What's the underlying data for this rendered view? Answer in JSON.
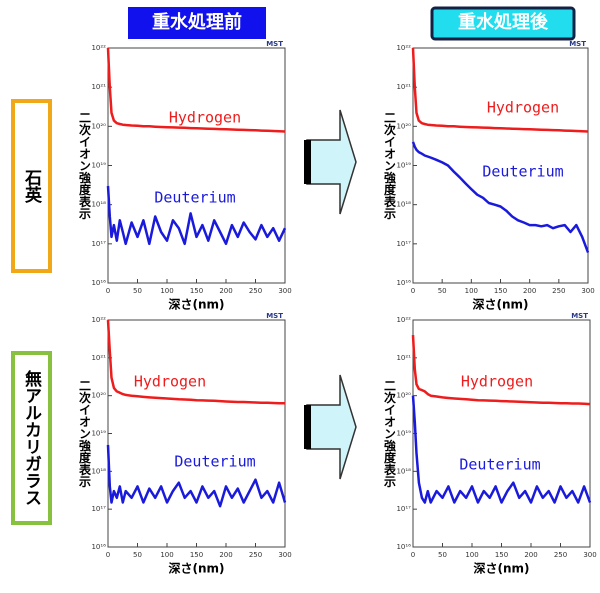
{
  "headers": [
    "重水処理前",
    "重水処理後"
  ],
  "rows": [
    "石英",
    "無アルカリガラス"
  ],
  "chart_data": [
    {
      "type": "line",
      "logo": "MST",
      "xlabel": "深さ(nm)",
      "ylabel": "二次イオン強度表示",
      "log_scale": true,
      "xlim": [
        0,
        300
      ],
      "xticks": [
        0,
        50,
        100,
        150,
        200,
        250,
        300
      ],
      "ylim": [
        1e+16,
        1e+22
      ],
      "yticks": [
        {
          "value": 1e+16,
          "label": "10¹⁶"
        },
        {
          "value": 1e+17,
          "label": "10¹⁷"
        },
        {
          "value": 1e+18,
          "label": "10¹⁸"
        },
        {
          "value": 1e+19,
          "label": "10¹⁹"
        },
        {
          "value": 1e+20,
          "label": "10²⁰"
        },
        {
          "value": 1e+21,
          "label": "10²¹"
        },
        {
          "value": 1e+22,
          "label": "10²²"
        }
      ],
      "x": [
        0,
        3,
        6,
        10,
        15,
        20,
        25,
        30,
        40,
        50,
        60,
        70,
        80,
        90,
        100,
        110,
        120,
        130,
        140,
        150,
        160,
        170,
        180,
        190,
        200,
        210,
        220,
        230,
        240,
        250,
        260,
        270,
        280,
        290,
        300
      ],
      "series": [
        {
          "name": "Hydrogen",
          "color": "#ee1c1c",
          "values": [
            1e+22,
            1e+21,
            2.2e+20,
            1.4e+20,
            1.2e+20,
            1.15e+20,
            1.1e+20,
            1.08e+20,
            1.05e+20,
            1.03e+20,
            1e+20,
            1e+20,
            9.8e+19,
            9.6e+19,
            9.5e+19,
            9.4e+19,
            9.3e+19,
            9.2e+19,
            9e+19,
            8.9e+19,
            8.8e+19,
            8.7e+19,
            8.6e+19,
            8.5e+19,
            8.4e+19,
            8.3e+19,
            8.2e+19,
            8.1e+19,
            8e+19,
            7.9e+19,
            7.8e+19,
            7.7e+19,
            7.6e+19,
            7.5e+19,
            7.4e+19
          ]
        },
        {
          "name": "Deuterium",
          "color": "#1a1adc",
          "values": [
            3e+18,
            5e+17,
            1.5e+17,
            3e+17,
            1.2e+17,
            4e+17,
            2e+17,
            1e+17,
            3.5e+17,
            1.5e+17,
            4e+17,
            1e+17,
            5e+17,
            2e+17,
            1.2e+17,
            4e+17,
            2.5e+17,
            1e+17,
            6e+17,
            1.5e+17,
            3e+17,
            1.2e+17,
            4e+17,
            2e+17,
            1e+17,
            3e+17,
            1.5e+17,
            3.5e+17,
            2e+17,
            1.3e+17,
            3e+17,
            1.5e+17,
            2.5e+17,
            1.2e+17,
            2.5e+17
          ]
        }
      ]
    },
    {
      "type": "line",
      "logo": "MST",
      "xlabel": "深さ(nm)",
      "ylabel": "二次イオン強度表示",
      "log_scale": true,
      "xlim": [
        0,
        300
      ],
      "xticks": [
        0,
        50,
        100,
        150,
        200,
        250,
        300
      ],
      "ylim": [
        1e+16,
        1e+22
      ],
      "yticks": [
        {
          "value": 1e+16,
          "label": "10¹⁶"
        },
        {
          "value": 1e+17,
          "label": "10¹⁷"
        },
        {
          "value": 1e+18,
          "label": "10¹⁸"
        },
        {
          "value": 1e+19,
          "label": "10¹⁹"
        },
        {
          "value": 1e+20,
          "label": "10²⁰"
        },
        {
          "value": 1e+21,
          "label": "10²¹"
        },
        {
          "value": 1e+22,
          "label": "10²²"
        }
      ],
      "x": [
        0,
        3,
        6,
        10,
        15,
        20,
        25,
        30,
        40,
        50,
        60,
        70,
        80,
        90,
        100,
        110,
        120,
        130,
        140,
        150,
        160,
        170,
        180,
        190,
        200,
        210,
        220,
        230,
        240,
        250,
        260,
        270,
        280,
        290,
        300
      ],
      "series": [
        {
          "name": "Hydrogen",
          "color": "#ee1c1c",
          "values": [
            1e+22,
            1e+21,
            2.2e+20,
            1.4e+20,
            1.2e+20,
            1.15e+20,
            1.1e+20,
            1.08e+20,
            1.05e+20,
            1.03e+20,
            1e+20,
            1e+20,
            9.8e+19,
            9.6e+19,
            9.5e+19,
            9.4e+19,
            9.3e+19,
            9.2e+19,
            9e+19,
            8.9e+19,
            8.8e+19,
            8.7e+19,
            8.6e+19,
            8.5e+19,
            8.4e+19,
            8.3e+19,
            8.2e+19,
            8.1e+19,
            8e+19,
            7.9e+19,
            7.8e+19,
            7.7e+19,
            7.6e+19,
            7.5e+19,
            7.4e+19
          ]
        },
        {
          "name": "Deuterium",
          "color": "#1a1adc",
          "values": [
            4e+19,
            3e+19,
            2.5e+19,
            2.2e+19,
            2e+19,
            1.8e+19,
            1.7e+19,
            1.6e+19,
            1.4e+19,
            1.2e+19,
            1e+19,
            7e+18,
            5e+18,
            3.5e+18,
            2.5e+18,
            1.8e+18,
            1.5e+18,
            1.1e+18,
            1e+18,
            9e+17,
            7e+17,
            5e+17,
            4e+17,
            3.5e+17,
            3e+17,
            3e+17,
            2.8e+17,
            3e+17,
            2.5e+17,
            2.8e+17,
            3e+17,
            2e+17,
            3e+17,
            1.5e+17,
            6e+16
          ]
        }
      ]
    },
    {
      "type": "line",
      "logo": "MST",
      "xlabel": "深さ(nm)",
      "ylabel": "二次イオン強度表示",
      "log_scale": true,
      "xlim": [
        0,
        300
      ],
      "xticks": [
        0,
        50,
        100,
        150,
        200,
        250,
        300
      ],
      "ylim": [
        1e+16,
        1e+22
      ],
      "yticks": [
        {
          "value": 1e+16,
          "label": "10¹⁶"
        },
        {
          "value": 1e+17,
          "label": "10¹⁷"
        },
        {
          "value": 1e+18,
          "label": "10¹⁸"
        },
        {
          "value": 1e+19,
          "label": "10¹⁹"
        },
        {
          "value": 1e+20,
          "label": "10²⁰"
        },
        {
          "value": 1e+21,
          "label": "10²¹"
        },
        {
          "value": 1e+22,
          "label": "10²²"
        }
      ],
      "x": [
        0,
        3,
        6,
        10,
        15,
        20,
        25,
        30,
        40,
        50,
        60,
        70,
        80,
        90,
        100,
        110,
        120,
        130,
        140,
        150,
        160,
        170,
        180,
        190,
        200,
        210,
        220,
        230,
        240,
        250,
        260,
        270,
        280,
        290,
        300
      ],
      "series": [
        {
          "name": "Hydrogen",
          "color": "#ee1c1c",
          "values": [
            1e+22,
            1.5e+21,
            3e+20,
            1.6e+20,
            1.3e+20,
            1.2e+20,
            1.1e+20,
            1.05e+20,
            1e+20,
            9.6e+19,
            9.3e+19,
            9e+19,
            8.8e+19,
            8.6e+19,
            8.4e+19,
            8.2e+19,
            8e+19,
            7.9e+19,
            7.8e+19,
            7.6e+19,
            7.5e+19,
            7.4e+19,
            7.3e+19,
            7.2e+19,
            7e+19,
            6.9e+19,
            6.8e+19,
            6.8e+19,
            6.7e+19,
            6.6e+19,
            6.5e+19,
            6.5e+19,
            6.4e+19,
            6.3e+19,
            6.3e+19
          ]
        },
        {
          "name": "Deuterium",
          "color": "#1a1adc",
          "values": [
            5e+18,
            4e+17,
            1.5e+17,
            3e+17,
            2e+17,
            4e+17,
            1.5e+17,
            3e+17,
            2e+17,
            4e+17,
            1.5e+17,
            3.5e+17,
            2e+17,
            4e+17,
            1.5e+17,
            3e+17,
            5e+17,
            2e+17,
            3e+17,
            1.5e+17,
            4e+17,
            2e+17,
            3e+17,
            1.2e+17,
            4e+17,
            2e+17,
            3.5e+17,
            1.5e+17,
            3e+17,
            6e+17,
            2e+17,
            3e+17,
            1.5e+17,
            5e+17,
            1.5e+17
          ]
        }
      ]
    },
    {
      "type": "line",
      "logo": "MST",
      "xlabel": "深さ(nm)",
      "ylabel": "二次イオン強度表示",
      "log_scale": true,
      "xlim": [
        0,
        300
      ],
      "xticks": [
        0,
        50,
        100,
        150,
        200,
        250,
        300
      ],
      "ylim": [
        1e+16,
        1e+22
      ],
      "yticks": [
        {
          "value": 1e+16,
          "label": "10¹⁶"
        },
        {
          "value": 1e+17,
          "label": "10¹⁷"
        },
        {
          "value": 1e+18,
          "label": "10¹⁸"
        },
        {
          "value": 1e+19,
          "label": "10¹⁹"
        },
        {
          "value": 1e+20,
          "label": "10²⁰"
        },
        {
          "value": 1e+21,
          "label": "10²¹"
        },
        {
          "value": 1e+22,
          "label": "10²²"
        }
      ],
      "x": [
        0,
        3,
        6,
        10,
        15,
        20,
        25,
        30,
        40,
        50,
        60,
        70,
        80,
        90,
        100,
        110,
        120,
        130,
        140,
        150,
        160,
        170,
        180,
        190,
        200,
        210,
        220,
        230,
        240,
        250,
        260,
        270,
        280,
        290,
        300
      ],
      "series": [
        {
          "name": "Hydrogen",
          "color": "#ee1c1c",
          "values": [
            4e+21,
            5e+20,
            2e+20,
            1.5e+20,
            1.4e+20,
            1.3e+20,
            1.1e+20,
            1e+20,
            9.5e+19,
            9e+19,
            8.7e+19,
            8.4e+19,
            8.2e+19,
            8e+19,
            7.8e+19,
            7.6e+19,
            7.5e+19,
            7.4e+19,
            7.3e+19,
            7.2e+19,
            7.1e+19,
            7e+19,
            6.9e+19,
            6.8e+19,
            6.7e+19,
            6.6e+19,
            6.5e+19,
            6.5e+19,
            6.4e+19,
            6.3e+19,
            6.3e+19,
            6.2e+19,
            6.2e+19,
            6.1e+19,
            6e+19
          ]
        },
        {
          "name": "Deuterium",
          "color": "#1a1adc",
          "values": [
            1e+20,
            2e+19,
            3e+18,
            5e+17,
            2e+17,
            1.5e+17,
            3e+17,
            1.5e+17,
            3e+17,
            2e+17,
            4e+17,
            1.5e+17,
            3e+17,
            2e+17,
            4e+17,
            1.5e+17,
            3e+17,
            2e+17,
            4e+17,
            1.5e+17,
            3e+17,
            5e+17,
            2e+17,
            3e+17,
            1.5e+17,
            4e+17,
            2e+17,
            3e+17,
            1.5e+17,
            4e+17,
            2e+17,
            3e+17,
            1.5e+17,
            4e+17,
            1.5e+17
          ]
        }
      ]
    }
  ]
}
